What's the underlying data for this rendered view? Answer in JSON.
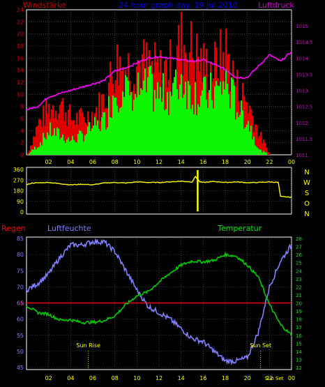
{
  "colors": {
    "wind_gust": "#e00000",
    "wind_mean": "#00ff00",
    "pressure": "#ff00ff",
    "direction": "#ffff00",
    "humidity": "#8080ff",
    "temperature": "#00cc00",
    "rain": "#ff0000",
    "title": "#0000ff",
    "panel_bg": "#000000",
    "grid": "#606060",
    "frame": "#ffffff",
    "suntext": "#ffff00"
  },
  "header": {
    "left_label": "Windstärke",
    "title": "24 hour graph day: 19 Jul 2010",
    "right_label": "Luftdruck"
  },
  "time_axis": {
    "ticks": [
      "02",
      "04",
      "06",
      "08",
      "10",
      "12",
      "14",
      "16",
      "18",
      "20",
      "22",
      "00"
    ]
  },
  "panel3_labels": {
    "rain": "Regen",
    "humidity": "Luftfeuchte",
    "temperature": "Temperatur"
  },
  "sun": {
    "rise_label": "Sun Rise",
    "rise_hour": 5.6,
    "set_label": "Sun Set",
    "set_hour": 21.2,
    "now_label": "Sun Set",
    "now_hour": 22.8
  },
  "chart_data": [
    {
      "type": "bar",
      "title": "24 hour graph day: 19 Jul 2010",
      "ylabel_left": "Windstärke",
      "ylabel_right": "Luftdruck",
      "x_range": [
        0,
        24
      ],
      "ylim": [
        0,
        24
      ],
      "yticks_left": [
        "24",
        "22",
        "20",
        "18",
        "16",
        "14",
        "12",
        "10",
        "8",
        "6",
        "4",
        "2",
        "0"
      ],
      "y2lim": [
        1011,
        1015.5
      ],
      "yticks_right": [
        "1015",
        "1014.5",
        "1014",
        "1013.5",
        "1013",
        "1012.5",
        "1012",
        "1011.5",
        "1011"
      ],
      "series": [
        {
          "name": "gust",
          "x": [
            0,
            1,
            2,
            3,
            4,
            5,
            6,
            7,
            8,
            9,
            10,
            11,
            12,
            13,
            14,
            15,
            16,
            17,
            18,
            19,
            20,
            21,
            22,
            23
          ],
          "values": [
            0,
            6,
            9,
            10,
            7,
            7,
            8,
            11,
            18,
            17,
            18,
            17,
            16,
            17,
            22,
            20,
            17,
            17,
            20,
            13,
            10,
            4,
            0,
            0
          ]
        },
        {
          "name": "mean",
          "x": [
            0,
            1,
            2,
            3,
            4,
            5,
            6,
            7,
            8,
            9,
            10,
            11,
            12,
            13,
            14,
            15,
            16,
            17,
            18,
            19,
            20,
            21,
            22,
            23
          ],
          "values": [
            0,
            2,
            5,
            4,
            3,
            4,
            6,
            7,
            14,
            14,
            13,
            14,
            12,
            13,
            16,
            13,
            12,
            13,
            15,
            10,
            7,
            1,
            0,
            0
          ]
        },
        {
          "name": "pressure",
          "x": [
            0,
            1,
            2,
            3,
            4,
            5,
            6,
            7,
            8,
            9,
            10,
            11,
            12,
            13,
            14,
            15,
            16,
            17,
            18,
            19,
            20,
            21,
            22,
            23,
            24
          ],
          "values": [
            1012.4,
            1012.5,
            1012.8,
            1012.9,
            1013.0,
            1013.1,
            1013.2,
            1013.3,
            1013.6,
            1013.7,
            1013.85,
            1014.0,
            1014.05,
            1014.0,
            1013.95,
            1013.9,
            1013.95,
            1013.8,
            1013.65,
            1013.4,
            1013.4,
            1013.75,
            1014.1,
            1013.9,
            1014.2
          ]
        }
      ]
    },
    {
      "type": "line",
      "ylim": [
        0,
        360
      ],
      "yticks_left": [
        "360",
        "270",
        "180",
        "90",
        "0"
      ],
      "yticks_right": [
        "N",
        "W",
        "S",
        "O",
        "N"
      ],
      "series": [
        {
          "name": "direction",
          "x": [
            0,
            0.5,
            2,
            3,
            4,
            5,
            6,
            7,
            8,
            9,
            10,
            11,
            12,
            13,
            14,
            15,
            15.3,
            15.7,
            16,
            17,
            18,
            19,
            20,
            21,
            22,
            22.8,
            23,
            24
          ],
          "values": [
            230,
            245,
            250,
            240,
            230,
            235,
            230,
            245,
            250,
            245,
            255,
            250,
            250,
            255,
            260,
            255,
            300,
            255,
            250,
            258,
            250,
            255,
            248,
            250,
            255,
            250,
            130,
            125
          ]
        }
      ]
    },
    {
      "type": "line",
      "ylabel_left": "Luftfeuchte",
      "ylabel_right": "Temperatur",
      "x_range": [
        0,
        24
      ],
      "ylim": [
        45,
        85
      ],
      "yticks_left": [
        "85",
        "80",
        "75",
        "70",
        "65",
        "60",
        "55",
        "50",
        "45"
      ],
      "y2lim": [
        12,
        28
      ],
      "yticks_right": [
        "28",
        "27",
        "26",
        "25",
        "24",
        "23",
        "22",
        "21",
        "20",
        "19",
        "18",
        "17",
        "16",
        "15",
        "14",
        "13",
        "12"
      ],
      "rain_level_label": "0",
      "series": [
        {
          "name": "Luftfeuchte",
          "x": [
            0,
            1,
            2,
            3,
            4,
            5,
            6,
            7,
            8,
            9,
            10,
            11,
            12,
            13,
            14,
            15,
            16,
            17,
            18,
            19,
            20,
            21,
            22,
            23,
            24
          ],
          "values": [
            69,
            71,
            74,
            79,
            83,
            83,
            84,
            84,
            81,
            75,
            69,
            64,
            62,
            60,
            57,
            54,
            53,
            50,
            47,
            47,
            48,
            56,
            70,
            78,
            83
          ]
        },
        {
          "name": "Temperatur",
          "x": [
            0,
            1,
            2,
            3,
            4,
            5,
            6,
            7,
            8,
            9,
            10,
            11,
            12,
            13,
            14,
            15,
            16,
            17,
            18,
            19,
            20,
            21,
            22,
            23,
            24
          ],
          "values": [
            19.7,
            18.8,
            18.6,
            17.9,
            17.9,
            17.6,
            17.6,
            17.8,
            18.4,
            19.8,
            20.9,
            21.4,
            22.6,
            23.7,
            24.7,
            25.2,
            25.1,
            25.3,
            26.0,
            25.8,
            24.7,
            23.2,
            19.8,
            17.3,
            16.0
          ]
        }
      ]
    }
  ]
}
